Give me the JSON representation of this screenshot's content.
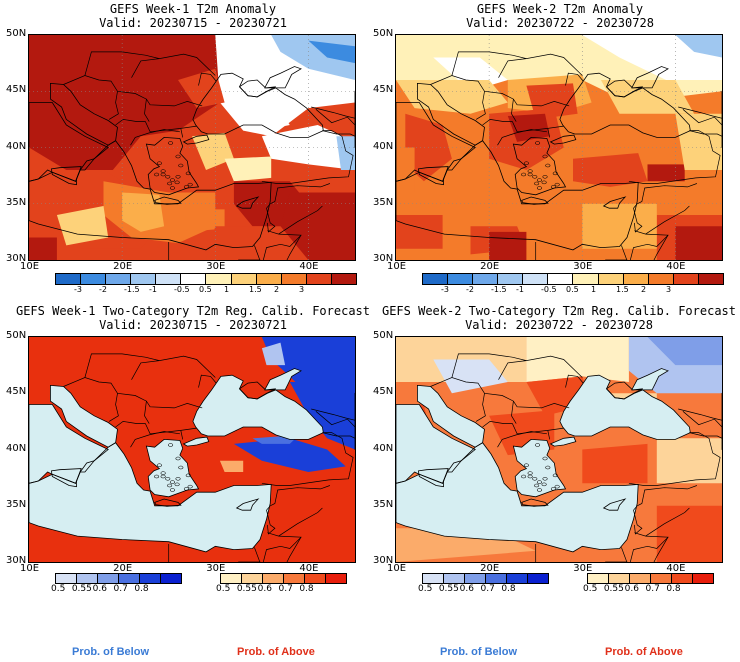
{
  "panels": [
    {
      "title": "GEFS Week-1 T2m Anomaly",
      "valid": "Valid: 20230715 - 20230721"
    },
    {
      "title": "GEFS Week-2 T2m Anomaly",
      "valid": "Valid: 20230722 - 20230728"
    },
    {
      "title": "GEFS Week-1 Two-Category T2m Reg. Calib. Forecast",
      "valid": "Valid: 20230715 - 20230721"
    },
    {
      "title": "GEFS Week-2 Two-Category T2m Reg. Calib. Forecast",
      "valid": "Valid: 20230722 - 20230728"
    }
  ],
  "axes": {
    "lat_labels": [
      "50N",
      "45N",
      "40N",
      "35N",
      "30N"
    ],
    "lon_labels": [
      "10E",
      "20E",
      "30E",
      "40E"
    ]
  },
  "anomaly_colorbar": {
    "ticks": [
      "-3",
      "-2",
      "-1.5",
      "-1",
      "-0.5",
      "0.5",
      "1",
      "1.5",
      "2",
      "3"
    ],
    "colors": [
      "#1e6ac8",
      "#3c8be0",
      "#6ea8ea",
      "#9fc7f0",
      "#cfe2f7",
      "#ffffff",
      "#fff1b8",
      "#fdd27a",
      "#fbae4a",
      "#f47b2a",
      "#e2431c",
      "#b3190f"
    ]
  },
  "prob_below_bar": {
    "ticks": [
      "0.5",
      "0.55",
      "0.6",
      "0.7",
      "0.8"
    ],
    "colors": [
      "#d8e2f5",
      "#b0c4f0",
      "#7f9ee8",
      "#4a70e0",
      "#1a3fd8",
      "#0a20d0"
    ]
  },
  "prob_above_bar": {
    "ticks": [
      "0.5",
      "0.55",
      "0.6",
      "0.7",
      "0.8"
    ],
    "colors": [
      "#fff0c4",
      "#fdd49a",
      "#fbab6a",
      "#f7793c",
      "#f04a1c",
      "#e81e0c"
    ]
  },
  "footer": {
    "below_label": "Prob. of Below",
    "above_label": "Prob. of Above",
    "below_color": "#3a7bd5",
    "above_color": "#e0301a"
  },
  "colors": {
    "sea": "#d6eef2",
    "deep_red": "#b3190f",
    "red": "#e2431c",
    "orange": "#f47b2a",
    "lt_orange": "#fbae4a",
    "yellow": "#fdd27a",
    "pale": "#fff1b8",
    "white": "#ffffff",
    "lt_blue": "#9fc7f0",
    "blue": "#3c8be0",
    "prob_red": "#e8300e",
    "prob_blue": "#1a3fd8"
  }
}
